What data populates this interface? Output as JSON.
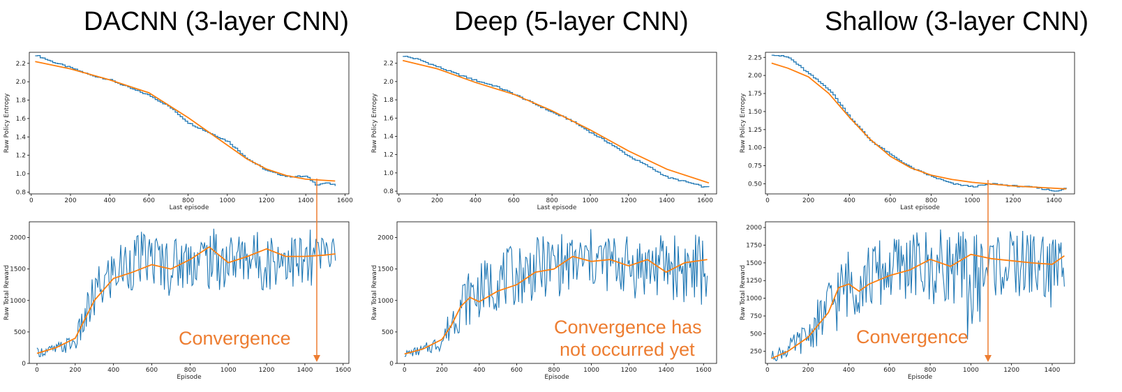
{
  "titles": [
    "DACNN (3-layer CNN)",
    "Deep (5-layer CNN)",
    "Shallow (3-layer CNN)"
  ],
  "colors": {
    "raw": "#1f77b4",
    "smooth": "#ff7f0e",
    "annotation": "#ed7d31"
  },
  "annotations": {
    "dacnn": [
      "Convergence"
    ],
    "deep": [
      "Convergence has",
      "not occurred yet"
    ],
    "shallow": [
      "Convergence"
    ]
  },
  "chart_data": [
    {
      "id": "dacnn-entropy",
      "type": "line",
      "xlabel": "Last episode",
      "ylabel": "Raw Policy Entropy",
      "xlim": [
        -10,
        1620
      ],
      "ylim": [
        0.78,
        2.32
      ],
      "xticks": [
        0,
        200,
        400,
        600,
        800,
        1000,
        1200,
        1400,
        1600
      ],
      "yticks": [
        0.8,
        1.0,
        1.2,
        1.4,
        1.6,
        1.8,
        2.0,
        2.2
      ],
      "ytick_labels": [
        "0.8",
        "1.0",
        "1.2",
        "1.4",
        "1.6",
        "1.8",
        "2.0",
        "2.2"
      ],
      "series": [
        {
          "role": "raw",
          "x": [
            20,
            100,
            200,
            300,
            400,
            500,
            600,
            700,
            800,
            900,
            1000,
            1100,
            1200,
            1300,
            1400,
            1450,
            1500,
            1550
          ],
          "values": [
            2.29,
            2.22,
            2.15,
            2.07,
            2.02,
            1.93,
            1.85,
            1.73,
            1.55,
            1.45,
            1.35,
            1.16,
            1.03,
            0.97,
            0.97,
            0.88,
            0.9,
            0.87
          ]
        },
        {
          "role": "smooth",
          "x": [
            20,
            200,
            400,
            600,
            800,
            1000,
            1100,
            1200,
            1300,
            1400,
            1550
          ],
          "values": [
            2.22,
            2.14,
            2.02,
            1.88,
            1.61,
            1.31,
            1.16,
            1.05,
            0.98,
            0.94,
            0.92
          ]
        }
      ]
    },
    {
      "id": "deep-entropy",
      "type": "line",
      "xlabel": "Last episode",
      "ylabel": "Raw Policy Entropy",
      "xlim": [
        -10,
        1660
      ],
      "ylim": [
        0.77,
        2.32
      ],
      "xticks": [
        0,
        200,
        400,
        600,
        800,
        1000,
        1200,
        1400,
        1600
      ],
      "yticks": [
        0.8,
        1.0,
        1.2,
        1.4,
        1.6,
        1.8,
        2.0,
        2.2
      ],
      "ytick_labels": [
        "0.8",
        "1.0",
        "1.2",
        "1.4",
        "1.6",
        "1.8",
        "2.0",
        "2.2"
      ],
      "series": [
        {
          "role": "raw",
          "x": [
            20,
            100,
            200,
            300,
            400,
            500,
            600,
            700,
            800,
            900,
            1000,
            1100,
            1200,
            1300,
            1400,
            1500,
            1600,
            1620
          ],
          "values": [
            2.28,
            2.24,
            2.16,
            2.08,
            2.01,
            1.95,
            1.86,
            1.76,
            1.66,
            1.57,
            1.44,
            1.32,
            1.18,
            1.07,
            0.95,
            0.9,
            0.84,
            0.85
          ]
        },
        {
          "role": "smooth",
          "x": [
            20,
            200,
            400,
            600,
            800,
            1000,
            1200,
            1400,
            1620
          ],
          "values": [
            2.23,
            2.14,
            1.99,
            1.86,
            1.68,
            1.47,
            1.24,
            1.04,
            0.89
          ]
        }
      ]
    },
    {
      "id": "shallow-entropy",
      "type": "line",
      "xlabel": "Last episode",
      "ylabel": "Raw Policy Entropy",
      "xlim": [
        -10,
        1500
      ],
      "ylim": [
        0.36,
        2.32
      ],
      "xticks": [
        0,
        200,
        400,
        600,
        800,
        1000,
        1200,
        1400
      ],
      "yticks": [
        0.5,
        0.75,
        1.0,
        1.25,
        1.5,
        1.75,
        2.0,
        2.25
      ],
      "ytick_labels": [
        "0.50",
        "0.75",
        "1.00",
        "1.25",
        "1.50",
        "1.75",
        "2.00",
        "2.25"
      ],
      "series": [
        {
          "role": "raw",
          "x": [
            20,
            100,
            200,
            300,
            400,
            500,
            600,
            700,
            800,
            900,
            1000,
            1100,
            1200,
            1300,
            1400,
            1460
          ],
          "values": [
            2.29,
            2.25,
            2.02,
            1.8,
            1.42,
            1.1,
            0.9,
            0.72,
            0.6,
            0.5,
            0.46,
            0.5,
            0.47,
            0.45,
            0.4,
            0.44
          ]
        },
        {
          "role": "smooth",
          "x": [
            20,
            100,
            200,
            300,
            400,
            500,
            600,
            700,
            800,
            900,
            1000,
            1200,
            1460
          ],
          "values": [
            2.17,
            2.1,
            1.98,
            1.75,
            1.42,
            1.12,
            0.88,
            0.72,
            0.62,
            0.56,
            0.52,
            0.47,
            0.43
          ]
        }
      ]
    },
    {
      "id": "dacnn-reward",
      "type": "line",
      "xlabel": "Episode",
      "ylabel": "Raw Total Reward",
      "xlim": [
        -40,
        1630
      ],
      "ylim": [
        0,
        2250
      ],
      "xticks": [
        0,
        200,
        400,
        600,
        800,
        1000,
        1200,
        1400,
        1600
      ],
      "yticks": [
        0,
        500,
        1000,
        1500,
        2000
      ],
      "ytick_labels": [
        "0",
        "500",
        "1000",
        "1500",
        "2000"
      ],
      "series": [
        {
          "role": "raw-envelope",
          "x": [
            0,
            100,
            200,
            300,
            400,
            500,
            600,
            700,
            800,
            900,
            1000,
            1100,
            1200,
            1300,
            1400,
            1500,
            1560
          ],
          "hi": [
            250,
            320,
            500,
            1500,
            1900,
            2100,
            2100,
            2050,
            2100,
            2150,
            2150,
            2100,
            2150,
            2100,
            2150,
            2100,
            2050
          ],
          "lo": [
            100,
            120,
            180,
            600,
            1000,
            1150,
            1250,
            1050,
            1200,
            1150,
            1100,
            1300,
            1100,
            1300,
            900,
            1400,
            1600
          ]
        },
        {
          "role": "smooth",
          "x": [
            0,
            100,
            200,
            250,
            300,
            400,
            500,
            600,
            700,
            800,
            900,
            1000,
            1100,
            1200,
            1300,
            1400,
            1500,
            1560
          ],
          "values": [
            160,
            250,
            400,
            700,
            1000,
            1350,
            1450,
            1570,
            1500,
            1650,
            1850,
            1600,
            1700,
            1820,
            1700,
            1700,
            1720,
            1740
          ]
        }
      ]
    },
    {
      "id": "deep-reward",
      "type": "line",
      "xlabel": "Episode",
      "ylabel": "Raw Total Reward",
      "xlim": [
        -40,
        1670
      ],
      "ylim": [
        0,
        2250
      ],
      "xticks": [
        0,
        200,
        400,
        600,
        800,
        1000,
        1200,
        1400,
        1600
      ],
      "yticks": [
        0,
        500,
        1000,
        1500,
        2000
      ],
      "ytick_labels": [
        "0",
        "500",
        "1000",
        "1500",
        "2000"
      ],
      "series": [
        {
          "role": "raw-envelope",
          "x": [
            0,
            100,
            200,
            300,
            400,
            500,
            600,
            700,
            800,
            900,
            1000,
            1100,
            1200,
            1300,
            1400,
            1500,
            1620
          ],
          "hi": [
            200,
            300,
            500,
            1400,
            1600,
            1800,
            1900,
            2000,
            2100,
            2050,
            2150,
            2100,
            2050,
            2100,
            2050,
            2150,
            2050
          ],
          "lo": [
            100,
            120,
            200,
            500,
            700,
            850,
            900,
            1000,
            1050,
            1100,
            1150,
            1100,
            1050,
            950,
            1100,
            850,
            900
          ]
        },
        {
          "role": "smooth",
          "x": [
            0,
            100,
            200,
            250,
            300,
            350,
            400,
            500,
            600,
            700,
            800,
            900,
            1000,
            1100,
            1200,
            1300,
            1400,
            1500,
            1620
          ],
          "values": [
            150,
            230,
            380,
            600,
            900,
            1050,
            980,
            1150,
            1250,
            1450,
            1500,
            1700,
            1620,
            1650,
            1550,
            1650,
            1450,
            1600,
            1650
          ]
        }
      ]
    },
    {
      "id": "shallow-reward",
      "type": "line",
      "xlabel": "Episode",
      "ylabel": "Raw Total Reward",
      "xlim": [
        -10,
        1510
      ],
      "ylim": [
        80,
        2080
      ],
      "xticks": [
        0,
        200,
        400,
        600,
        800,
        1000,
        1200,
        1400
      ],
      "yticks": [
        250,
        500,
        750,
        1000,
        1250,
        1500,
        1750,
        2000
      ],
      "ytick_labels": [
        "250",
        "500",
        "750",
        "1000",
        "1250",
        "1500",
        "1750",
        "2000"
      ],
      "series": [
        {
          "role": "raw-envelope",
          "x": [
            20,
            100,
            200,
            300,
            400,
            500,
            600,
            700,
            800,
            900,
            1000,
            1100,
            1200,
            1300,
            1400,
            1460
          ],
          "hi": [
            250,
            400,
            700,
            1300,
            1750,
            1800,
            1900,
            1950,
            2000,
            1950,
            2000,
            2000,
            1950,
            2000,
            1950,
            1900
          ],
          "lo": [
            100,
            150,
            250,
            400,
            700,
            800,
            900,
            1000,
            800,
            1000,
            300,
            1000,
            950,
            1000,
            800,
            1100
          ]
        },
        {
          "role": "smooth",
          "x": [
            20,
            100,
            200,
            300,
            350,
            400,
            450,
            500,
            600,
            700,
            800,
            900,
            1000,
            1100,
            1200,
            1300,
            1400,
            1460
          ],
          "values": [
            150,
            250,
            450,
            800,
            1150,
            1200,
            1100,
            1200,
            1320,
            1400,
            1550,
            1450,
            1620,
            1560,
            1530,
            1500,
            1480,
            1600
          ]
        }
      ]
    }
  ]
}
